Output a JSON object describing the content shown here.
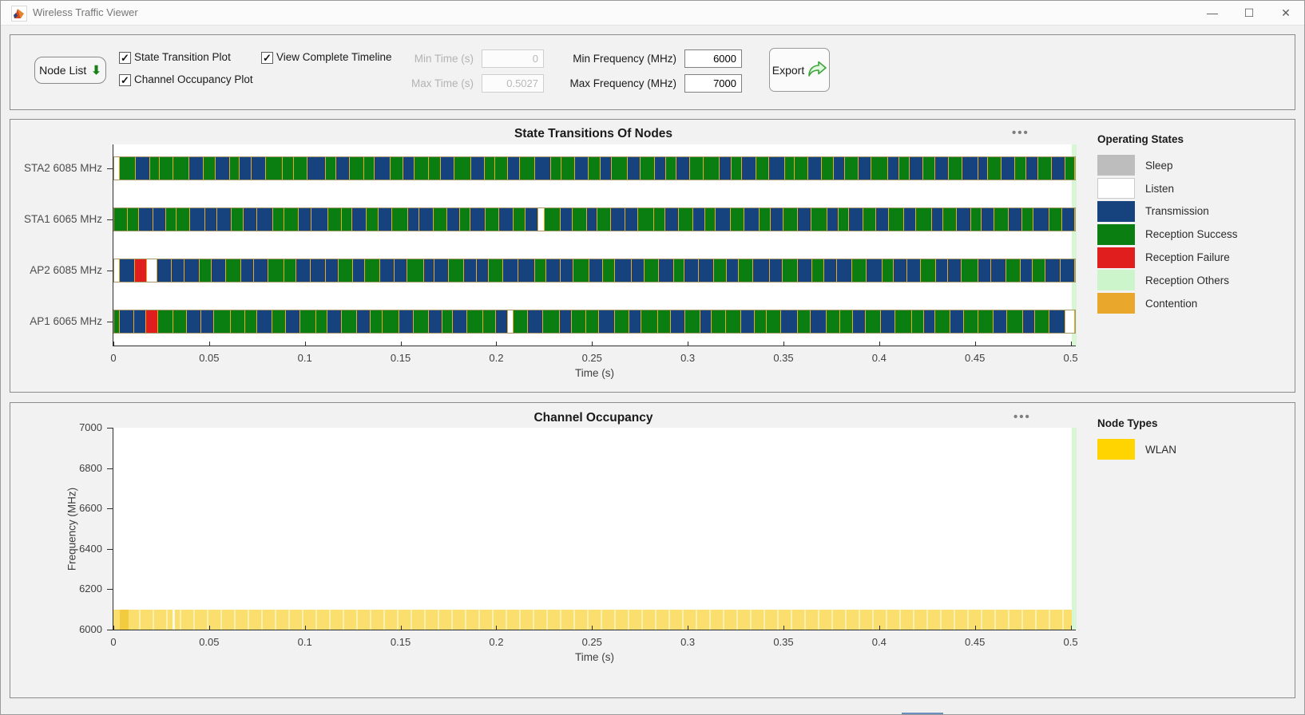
{
  "window": {
    "title": "Wireless Traffic Viewer"
  },
  "icons": {
    "app": "matlab-logo",
    "minimize": "—",
    "maximize": "☐",
    "close": "✕",
    "node_list_arrow": "⬇",
    "ellipsis": "•••"
  },
  "toolbar": {
    "node_list_label": "Node List",
    "checkboxes": [
      {
        "label": "State Transition Plot",
        "checked": true
      },
      {
        "label": "Channel Occupancy Plot",
        "checked": true
      },
      {
        "label": "View Complete Timeline",
        "checked": true
      }
    ],
    "fields": [
      {
        "label": "Min Time (s)",
        "value": "0",
        "disabled": true
      },
      {
        "label": "Max Time (s)",
        "value": "0.5027",
        "disabled": true
      },
      {
        "label": "Min Frequency (MHz)",
        "value": "6000",
        "disabled": false
      },
      {
        "label": "Max Frequency (MHz)",
        "value": "7000",
        "disabled": false
      }
    ],
    "export_label": "Export",
    "check_glyph": "✓"
  },
  "chart_data": [
    {
      "type": "timeline",
      "title": "State Transitions Of Nodes",
      "xlabel": "Time (s)",
      "xlim": [
        0,
        0.5027
      ],
      "xticks": [
        "0",
        "0.05",
        "0.1",
        "0.15",
        "0.2",
        "0.25",
        "0.3",
        "0.35",
        "0.4",
        "0.45",
        "0.5"
      ],
      "state_colors": {
        "L": "#FFFFFF",
        "T": "#16427E",
        "R": "#0B7E12",
        "F": "#E11E1E",
        "O": "#CCF5CC",
        "C": "#E9A72B"
      },
      "state_names": {
        "L": "Listen",
        "T": "Transmission",
        "R": "Reception Success",
        "F": "Reception Failure",
        "O": "Reception Others",
        "C": "Contention"
      },
      "rows": [
        {
          "label": "STA2 6085 MHz",
          "segments": "L5,R15,T13,R9,R12,R15,T14,R11,T13,R9,T11,T13,R16,R10,R13,T17,R10,T12,R14,R9,T15,R12,T10,R14,R11,T12,R16,T13,R9,R12,T11,R14,T15,R10,R12,T13,R11,T10,R15,T12,R13,T11,R9,T13,R12,R15,T11,R10,T13,R12,T15,R9,R12,T13,R11,T10,R13,T12,R15,T11,R9,T13,R11,T12,R13,T15,T9,R12,T13,R10,T11,R13,T12,R9"
        },
        {
          "label": "STA1 6065 MHz",
          "segments": "R12,R10,T13,T11,R9,R12,T14,T10,T13,R11,T12,T14,R10,R13,T11,T15,R12,R9,T13,R11,T12,R14,T10,T13,R12,T11,R9,T14,R12,T13,R10,T12,L5,R14,T11,R13,T9,R12,T13,T11,R14,R10,T12,R13,T11,R9,T13,R12,T14,R10,T11,R13,T12,R14,T10,R9,T13,R11,T12,R13,T11,R14,T10,R12,T13,R9,T11,R13,T12,R10,T14,R12,T11"
        },
        {
          "label": "AP2 6085 MHz",
          "segments": "L4,T13,F10,L9,T12,T11,T13,R10,T12,R13,T11,T12,R14,R10,T12,T13,T11,R12,T10,R13,T12,T11,R14,T9,T12,R13,T11,T10,R12,T13,T14,R10,T12,T11,R13,T12,R10,T14,T11,R12,T13,R9,T12,T13,R11,T10,R12,T14,T11,R13,T12,R10,T11,T13,R12,T14,R9,T12,T11,R13,T10,T12,R14,T11,T13,R12,T10,R11,T13,T12"
        },
        {
          "label": "AP1 6065 MHz",
          "segments": "R4,T12,T10,F10,R13,R11,T12,T11,R14,R12,R10,T13,R11,T12,R14,R9,T12,R13,T11,R10,R14,T12,R13,T11,R9,T12,R13,R11,T10,L4,R12,T13,R14,T10,R12,R11,T13,R12,T10,R14,R11,T12,R13,T9,R12,R13,T11,R10,R12,T14,R11,T13,R12,R10,T11,R13,T12,R14,R10,T9,R13,T11,R12,R13,T11,R14,T10,R12,T13,L8"
        }
      ],
      "legend": {
        "title": "Operating States",
        "entries": [
          {
            "label": "Sleep",
            "color": "#BDBDBD"
          },
          {
            "label": "Listen",
            "color": "#FFFFFF"
          },
          {
            "label": "Transmission",
            "color": "#16427E"
          },
          {
            "label": "Reception Success",
            "color": "#0B7E12"
          },
          {
            "label": "Reception Failure",
            "color": "#E11E1E"
          },
          {
            "label": "Reception Others",
            "color": "#CCF5CC"
          },
          {
            "label": "Contention",
            "color": "#E9A72B"
          }
        ]
      }
    },
    {
      "type": "occupancy",
      "title": "Channel Occupancy",
      "xlabel": "Time (s)",
      "ylabel": "Frequency (MHz)",
      "xlim": [
        0,
        0.5027
      ],
      "ylim": [
        6000,
        7000
      ],
      "xticks": [
        "0",
        "0.05",
        "0.1",
        "0.15",
        "0.2",
        "0.25",
        "0.3",
        "0.35",
        "0.4",
        "0.45",
        "0.5"
      ],
      "yticks": [
        "7000",
        "6800",
        "6600",
        "6400",
        "6200",
        "6000"
      ],
      "bands": [
        {
          "label": "WLAN",
          "freq_range": [
            6000,
            6100
          ],
          "time_range": [
            0,
            0.5027
          ],
          "color": "#FBDF6E"
        }
      ],
      "legend": {
        "title": "Node Types",
        "entries": [
          {
            "label": "WLAN",
            "color": "#FFD400"
          }
        ]
      }
    }
  ],
  "colors": {
    "accent_green": "#2CA02C",
    "timeline_end_marker": "#D8F5D6",
    "axis": "#2F2F2F"
  }
}
